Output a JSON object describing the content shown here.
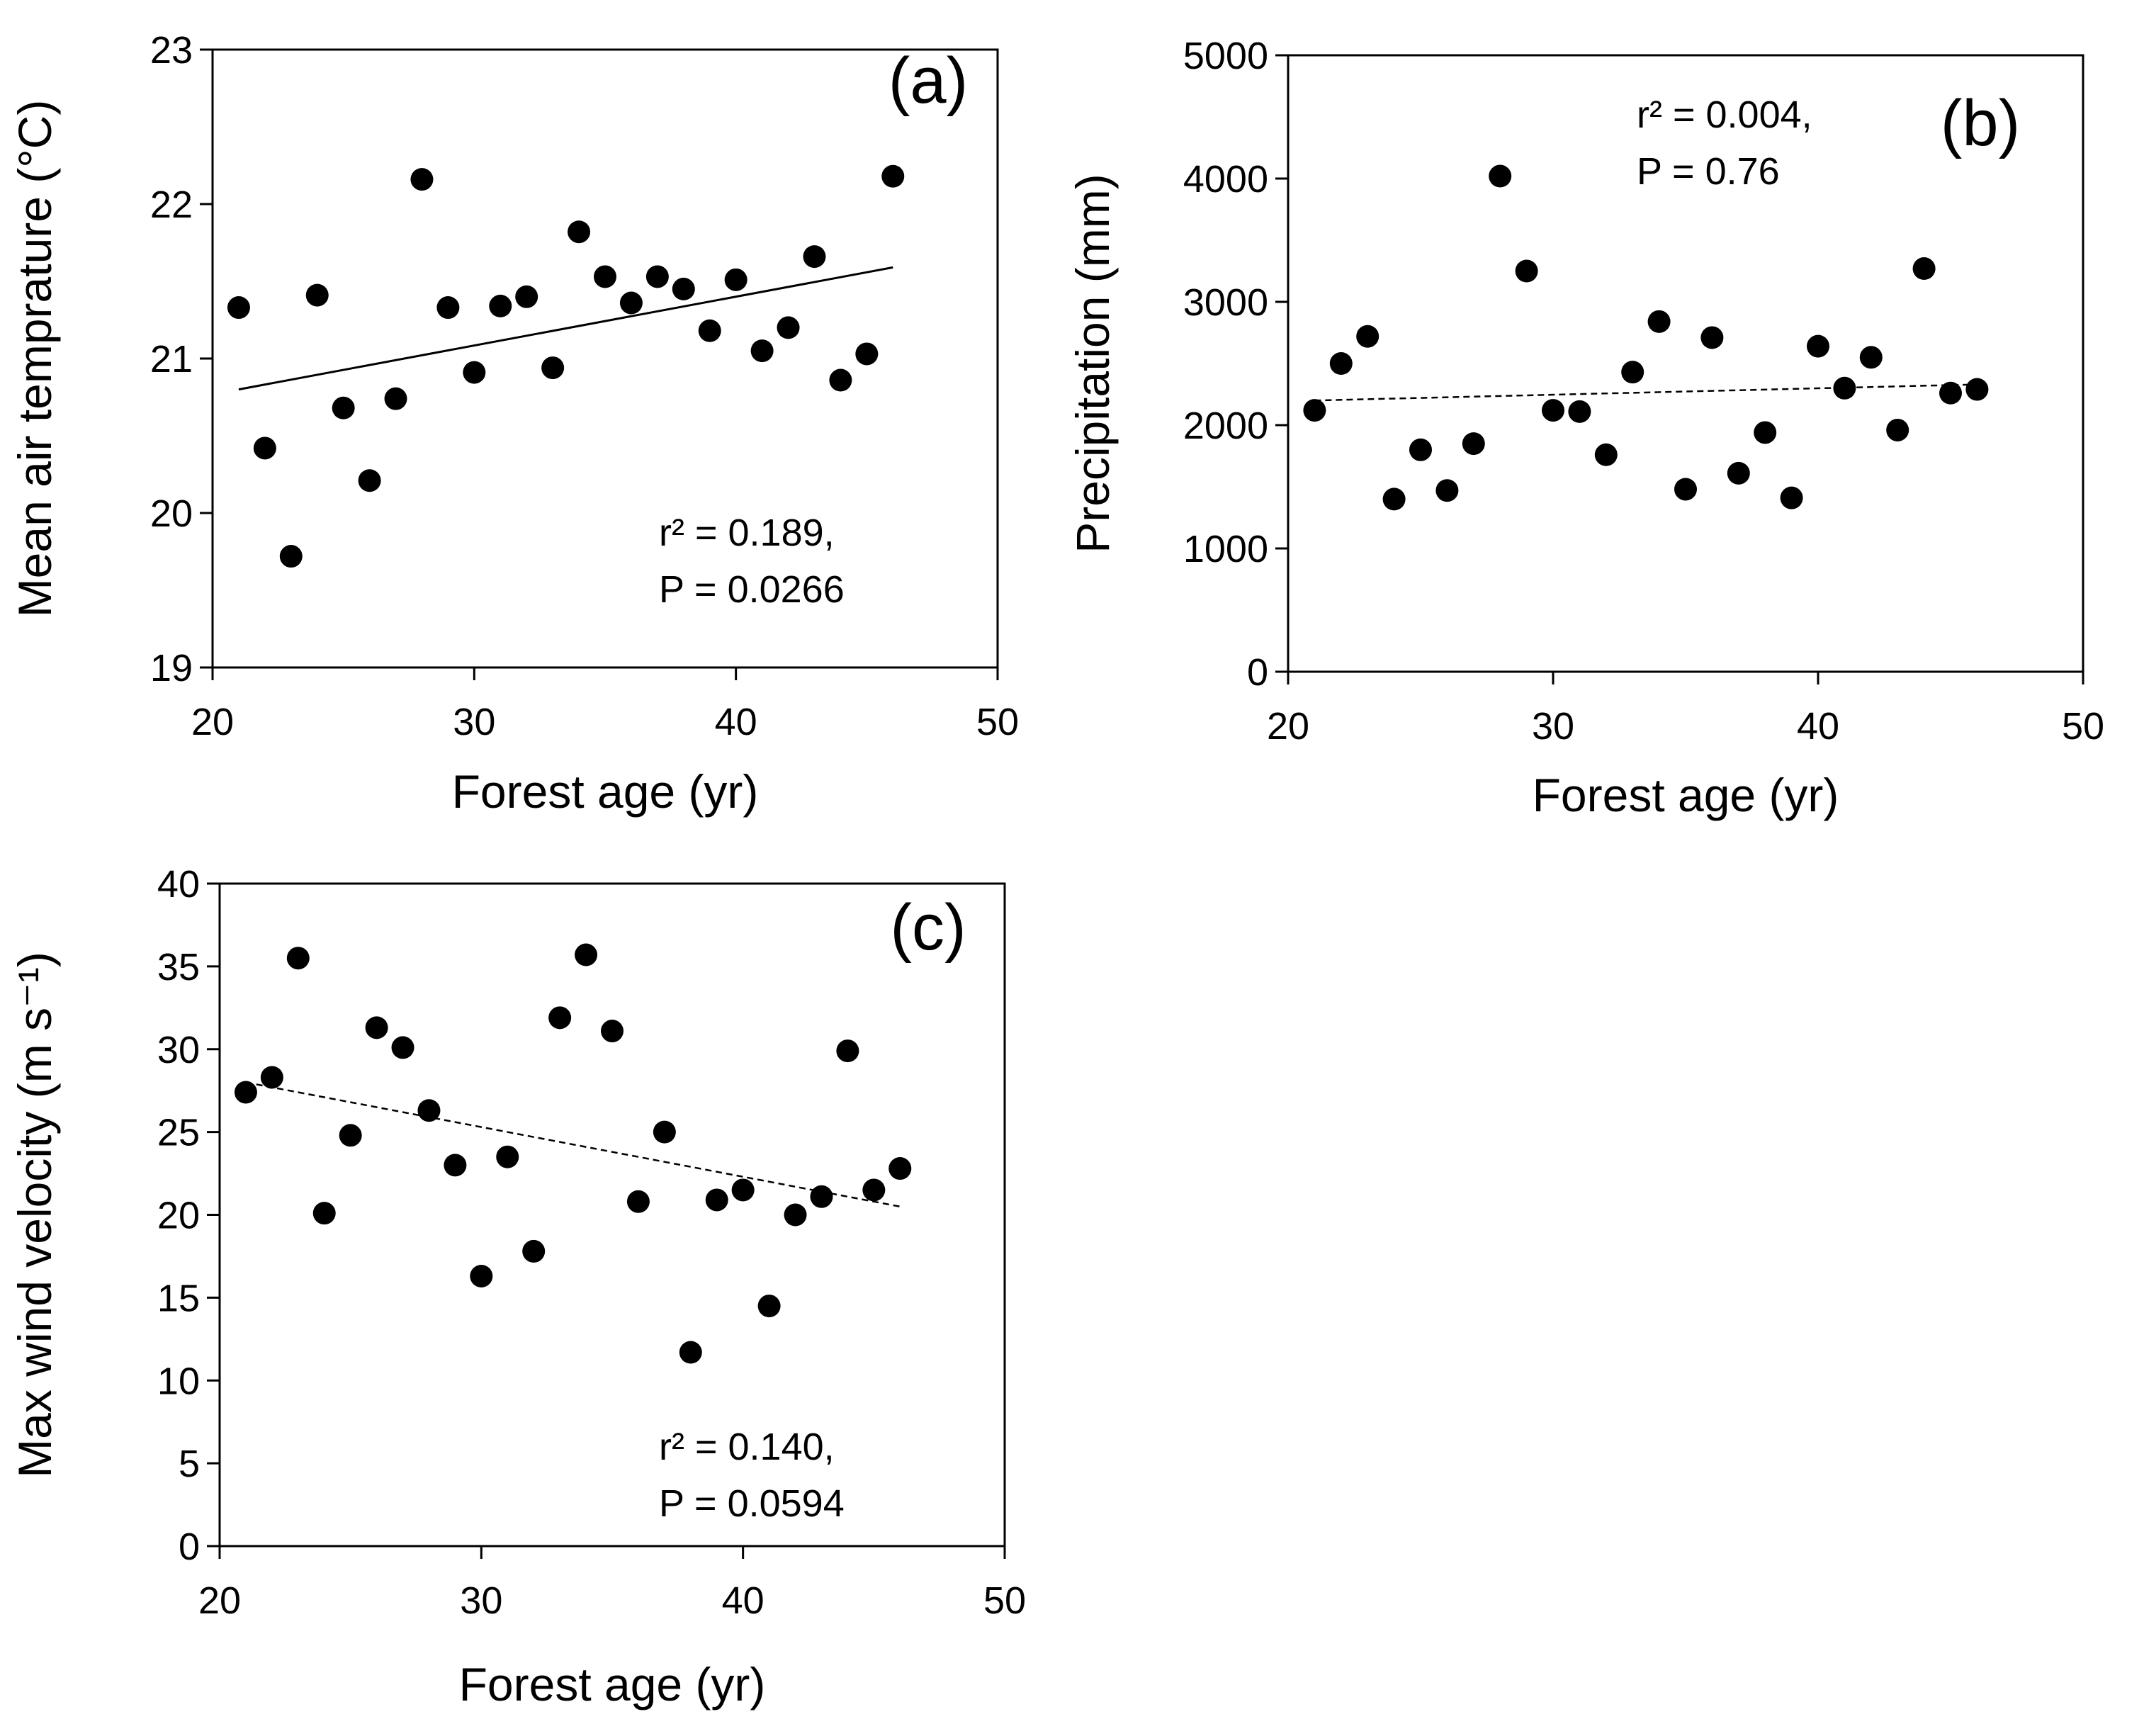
{
  "chart_data": [
    {
      "type": "scatter",
      "panel_label": "(a)",
      "xlabel": "Forest age (yr)",
      "ylabel": "Mean air temprature  (°C)",
      "xlim": [
        20,
        50
      ],
      "ylim": [
        19,
        23
      ],
      "xticks": [
        20,
        30,
        40,
        50
      ],
      "yticks": [
        19,
        20,
        21,
        22,
        23
      ],
      "annotation": [
        "r² =  0.189,",
        "P = 0.0266"
      ],
      "trendline": {
        "style": "solid",
        "x": [
          21,
          46
        ],
        "y": [
          20.8,
          21.59
        ]
      },
      "points": {
        "x": [
          21,
          22,
          23,
          24,
          25,
          26,
          27,
          28,
          29,
          30,
          31,
          32,
          33,
          34,
          35,
          36,
          37,
          38,
          39,
          40,
          41,
          42,
          43,
          44,
          45,
          46
        ],
        "y": [
          21.33,
          20.42,
          19.72,
          21.41,
          20.68,
          20.21,
          20.74,
          22.16,
          21.33,
          20.91,
          21.34,
          21.4,
          20.94,
          21.82,
          21.53,
          21.36,
          21.53,
          21.45,
          21.18,
          21.51,
          21.05,
          21.2,
          21.66,
          20.86,
          21.03,
          22.18
        ]
      }
    },
    {
      "type": "scatter",
      "panel_label": "(b)",
      "xlabel": "Forest age (yr)",
      "ylabel": "Precipitation (mm)",
      "xlim": [
        20,
        50
      ],
      "ylim": [
        0,
        5000
      ],
      "xticks": [
        20,
        30,
        40,
        50
      ],
      "yticks": [
        0,
        1000,
        2000,
        3000,
        4000,
        5000
      ],
      "annotation": [
        "r² =  0.004,",
        "P = 0.76"
      ],
      "trendline": {
        "style": "dashed",
        "x": [
          21,
          46
        ],
        "y": [
          2200,
          2330
        ]
      },
      "points": {
        "x": [
          21,
          22,
          23,
          24,
          25,
          26,
          27,
          28,
          29,
          30,
          31,
          32,
          33,
          34,
          35,
          36,
          37,
          38,
          39,
          40,
          41,
          42,
          43,
          44,
          45,
          46
        ],
        "y": [
          2120,
          2500,
          2720,
          1400,
          1800,
          1470,
          1850,
          4020,
          3250,
          2120,
          2110,
          1760,
          2430,
          2840,
          1480,
          2710,
          1610,
          1940,
          1410,
          2640,
          2300,
          2550,
          1960,
          3270,
          2260,
          2290
        ]
      }
    },
    {
      "type": "scatter",
      "panel_label": "(c)",
      "xlabel": "Forest age (yr)",
      "ylabel": "Max wind velocity (m s⁻¹)",
      "xlim": [
        20,
        50
      ],
      "ylim": [
        0,
        40
      ],
      "xticks": [
        20,
        30,
        40,
        50
      ],
      "yticks": [
        0,
        5,
        10,
        15,
        20,
        25,
        30,
        35,
        40
      ],
      "annotation": [
        "r² =  0.140,",
        "P = 0.0594"
      ],
      "trendline": {
        "style": "dashed",
        "x": [
          21,
          46
        ],
        "y": [
          28.0,
          20.5
        ]
      },
      "points": {
        "x": [
          21,
          22,
          23,
          24,
          25,
          26,
          27,
          28,
          29,
          30,
          31,
          32,
          33,
          34,
          35,
          36,
          37,
          38,
          39,
          40,
          41,
          42,
          43,
          44,
          45,
          46
        ],
        "y": [
          27.4,
          28.3,
          35.5,
          20.1,
          24.8,
          31.3,
          30.1,
          26.3,
          23.0,
          16.3,
          23.5,
          17.8,
          31.9,
          35.7,
          31.1,
          20.8,
          25.0,
          11.7,
          20.9,
          21.5,
          14.5,
          20.0,
          21.1,
          29.9,
          21.5,
          22.8
        ]
      }
    }
  ]
}
